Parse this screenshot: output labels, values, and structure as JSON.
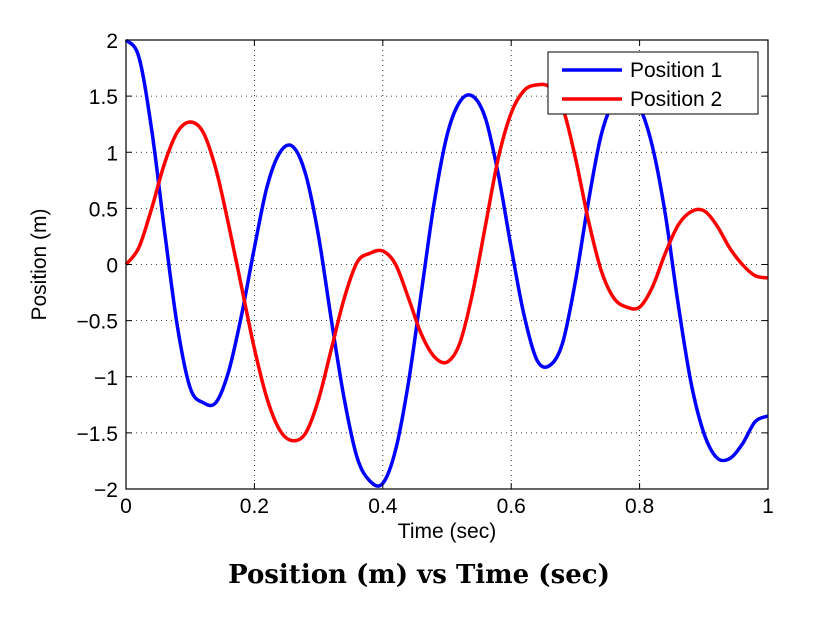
{
  "caption": "Position (m) vs Time (sec)",
  "chart_data": {
    "type": "line",
    "title": "",
    "xlabel": "Time (sec)",
    "ylabel": "Position (m)",
    "xlim": [
      0,
      1
    ],
    "ylim": [
      -2,
      2
    ],
    "xticks": [
      0,
      0.2,
      0.4,
      0.6,
      0.8,
      1
    ],
    "xtick_labels": [
      "0",
      "0.2",
      "0.4",
      "0.6",
      "0.8",
      "1"
    ],
    "yticks": [
      -2,
      -1.5,
      -1,
      -0.5,
      0,
      0.5,
      1,
      1.5,
      2
    ],
    "ytick_labels": [
      "−2",
      "−1.5",
      "−1",
      "−0.5",
      "0",
      "0.5",
      "1",
      "1.5",
      "2"
    ],
    "grid": true,
    "legend_position": "top-right",
    "series": [
      {
        "name": "Position 1",
        "color": "#0000ff",
        "x": [
          0,
          0.02,
          0.04,
          0.06,
          0.08,
          0.1,
          0.12,
          0.14,
          0.16,
          0.18,
          0.2,
          0.22,
          0.24,
          0.26,
          0.28,
          0.3,
          0.32,
          0.34,
          0.36,
          0.38,
          0.4,
          0.42,
          0.44,
          0.46,
          0.48,
          0.5,
          0.52,
          0.54,
          0.56,
          0.58,
          0.6,
          0.62,
          0.64,
          0.66,
          0.68,
          0.7,
          0.72,
          0.74,
          0.76,
          0.78,
          0.8,
          0.82,
          0.84,
          0.86,
          0.88,
          0.9,
          0.92,
          0.94,
          0.96,
          0.98,
          1.0
        ],
        "y": [
          2.0,
          1.85,
          1.2,
          0.3,
          -0.55,
          -1.1,
          -1.23,
          -1.23,
          -0.95,
          -0.45,
          0.15,
          0.7,
          1.0,
          1.05,
          0.8,
          0.25,
          -0.5,
          -1.2,
          -1.72,
          -1.93,
          -1.95,
          -1.65,
          -1.05,
          -0.25,
          0.55,
          1.15,
          1.45,
          1.5,
          1.3,
          0.8,
          0.15,
          -0.45,
          -0.85,
          -0.9,
          -0.7,
          -0.15,
          0.55,
          1.15,
          1.45,
          1.5,
          1.4,
          1.05,
          0.45,
          -0.35,
          -1.05,
          -1.5,
          -1.72,
          -1.73,
          -1.6,
          -1.4,
          -1.35
        ]
      },
      {
        "name": "Position 2",
        "color": "#ff0000",
        "x": [
          0,
          0.02,
          0.04,
          0.06,
          0.08,
          0.1,
          0.12,
          0.14,
          0.16,
          0.18,
          0.2,
          0.22,
          0.24,
          0.26,
          0.28,
          0.3,
          0.32,
          0.34,
          0.36,
          0.38,
          0.4,
          0.42,
          0.44,
          0.46,
          0.48,
          0.5,
          0.52,
          0.54,
          0.56,
          0.58,
          0.6,
          0.62,
          0.64,
          0.66,
          0.68,
          0.7,
          0.72,
          0.74,
          0.76,
          0.78,
          0.8,
          0.82,
          0.84,
          0.86,
          0.88,
          0.9,
          0.92,
          0.94,
          0.96,
          0.98,
          1.0
        ],
        "y": [
          0.0,
          0.15,
          0.5,
          0.9,
          1.18,
          1.27,
          1.18,
          0.85,
          0.35,
          -0.2,
          -0.75,
          -1.2,
          -1.48,
          -1.57,
          -1.5,
          -1.2,
          -0.75,
          -0.3,
          0.02,
          0.1,
          0.12,
          0.0,
          -0.3,
          -0.62,
          -0.82,
          -0.87,
          -0.7,
          -0.25,
          0.35,
          0.95,
          1.35,
          1.55,
          1.6,
          1.58,
          1.4,
          0.95,
          0.4,
          -0.05,
          -0.3,
          -0.38,
          -0.38,
          -0.2,
          0.1,
          0.35,
          0.47,
          0.48,
          0.35,
          0.15,
          0.0,
          -0.1,
          -0.12
        ]
      }
    ]
  }
}
